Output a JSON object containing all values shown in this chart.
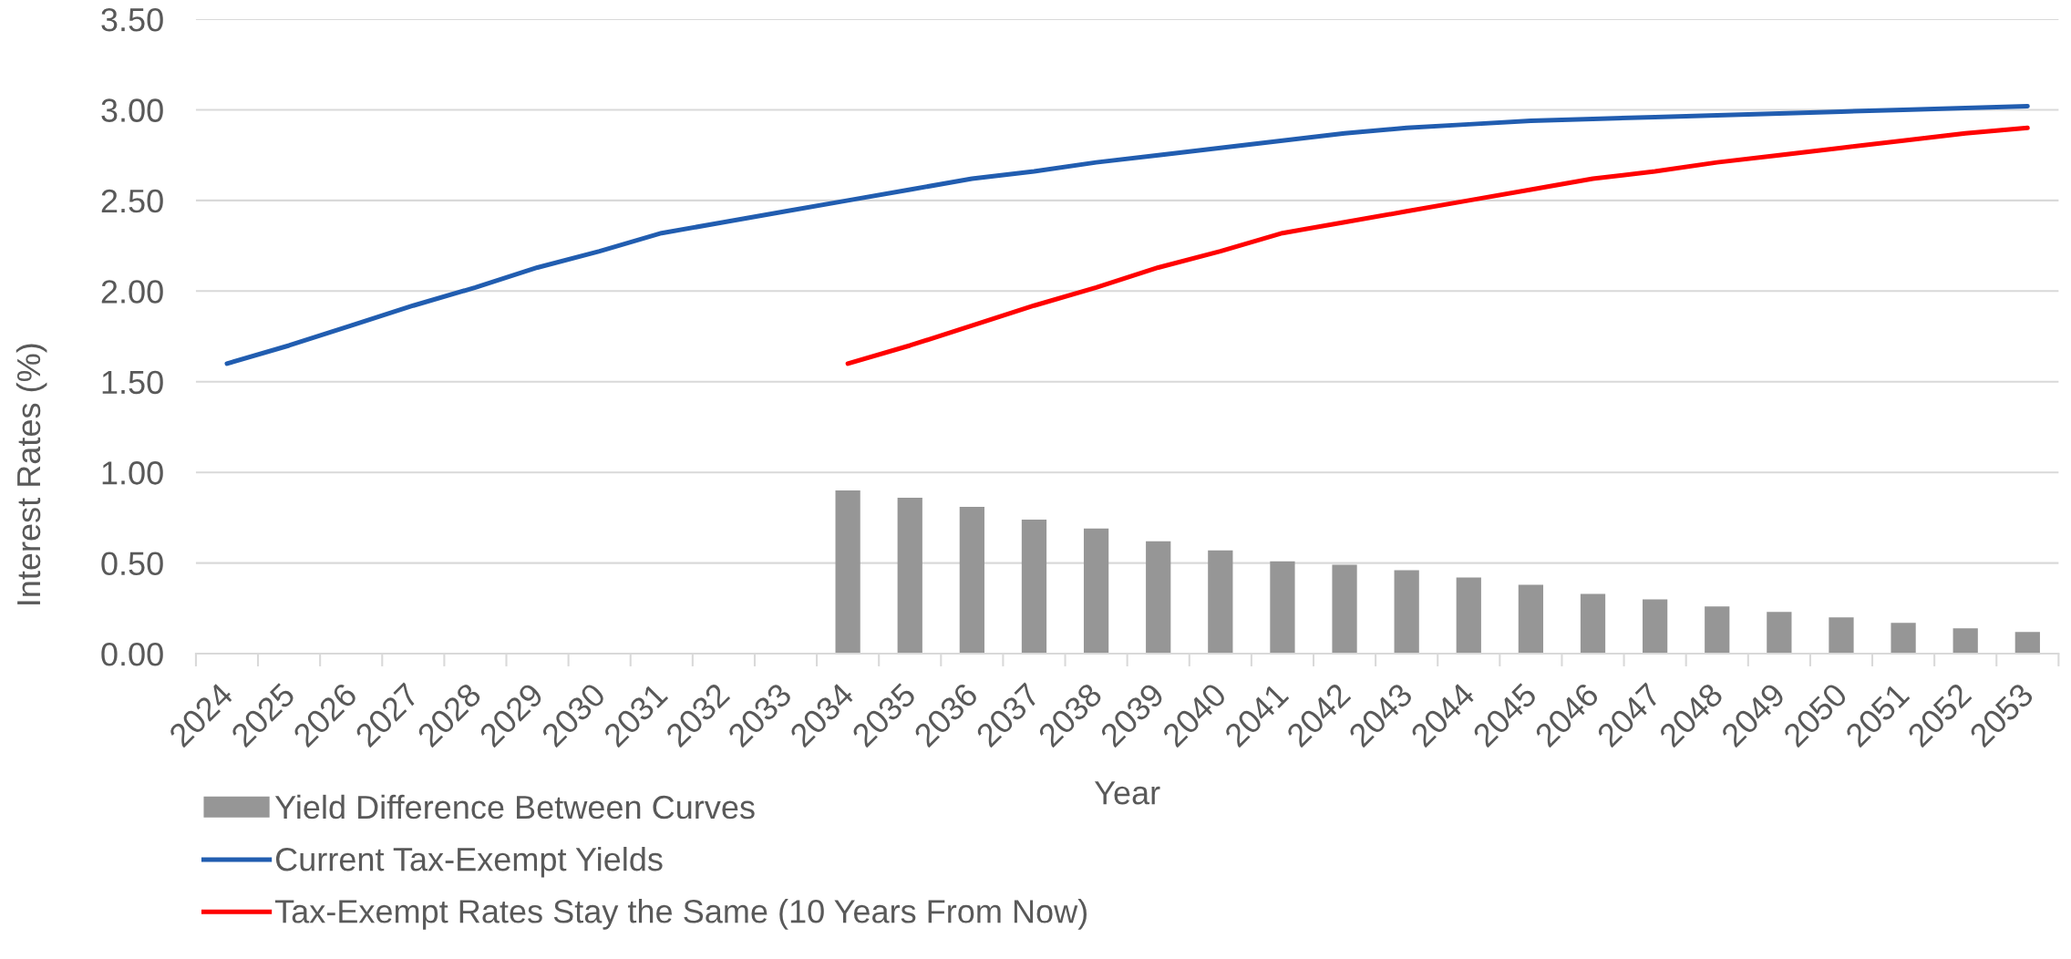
{
  "chart_data": {
    "type": "line",
    "xlabel": "Year",
    "ylabel": "Interest Rates (%)",
    "categories": [
      "2024",
      "2025",
      "2026",
      "2027",
      "2028",
      "2029",
      "2030",
      "2031",
      "2032",
      "2033",
      "2034",
      "2035",
      "2036",
      "2037",
      "2038",
      "2039",
      "2040",
      "2041",
      "2042",
      "2043",
      "2044",
      "2045",
      "2046",
      "2047",
      "2048",
      "2049",
      "2050",
      "2051",
      "2052",
      "2053"
    ],
    "series": [
      {
        "name": "Yield Difference Between Curves",
        "type": "bar",
        "color": "#969696",
        "values": [
          null,
          null,
          null,
          null,
          null,
          null,
          null,
          null,
          null,
          null,
          0.9,
          0.86,
          0.81,
          0.74,
          0.69,
          0.62,
          0.57,
          0.51,
          0.49,
          0.46,
          0.42,
          0.38,
          0.33,
          0.3,
          0.26,
          0.23,
          0.2,
          0.17,
          0.14,
          0.12
        ]
      },
      {
        "name": "Current Tax-Exempt Yields",
        "color": "#215db0",
        "values": [
          1.6,
          1.7,
          1.81,
          1.92,
          2.02,
          2.13,
          2.22,
          2.32,
          2.38,
          2.44,
          2.5,
          2.56,
          2.62,
          2.66,
          2.71,
          2.75,
          2.79,
          2.83,
          2.87,
          2.9,
          2.92,
          2.94,
          2.95,
          2.96,
          2.97,
          2.98,
          2.99,
          3.0,
          3.01,
          3.02
        ]
      },
      {
        "name": "Tax-Exempt Rates Stay the Same (10 Years From Now)",
        "color": "#ff0000",
        "values": [
          null,
          null,
          null,
          null,
          null,
          null,
          null,
          null,
          null,
          null,
          1.6,
          1.7,
          1.81,
          1.92,
          2.02,
          2.13,
          2.22,
          2.32,
          2.38,
          2.44,
          2.5,
          2.56,
          2.62,
          2.66,
          2.71,
          2.75,
          2.79,
          2.83,
          2.87,
          2.9
        ]
      }
    ],
    "ylim": [
      0,
      3.5
    ],
    "yticks": [
      {
        "value": 0,
        "label": "0.00"
      },
      {
        "value": 0.5,
        "label": "0.50"
      },
      {
        "value": 1,
        "label": "1.00"
      },
      {
        "value": 1.5,
        "label": "1.50"
      },
      {
        "value": 2,
        "label": "2.00"
      },
      {
        "value": 2.5,
        "label": "2.50"
      },
      {
        "value": 3,
        "label": "3.00"
      },
      {
        "value": 3.5,
        "label": "3.50"
      }
    ],
    "grid": "y",
    "legend": "bottom left"
  }
}
